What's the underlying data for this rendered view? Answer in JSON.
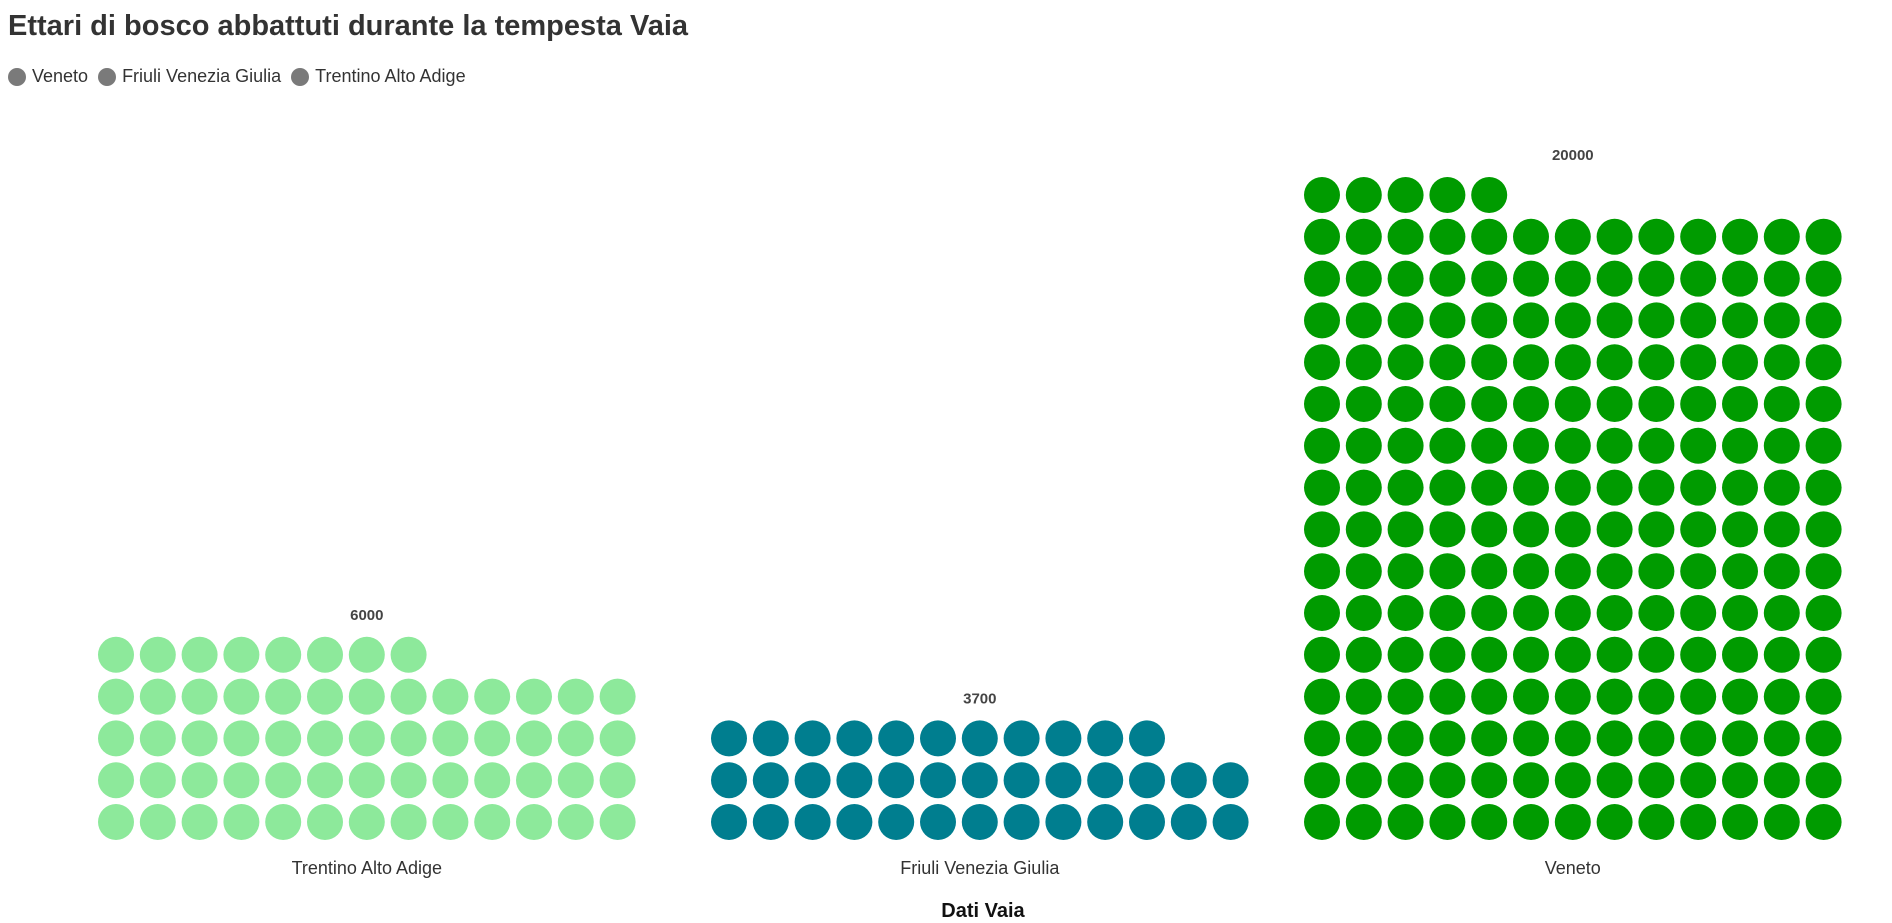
{
  "title": "Ettari di bosco abbattuti durante la tempesta Vaia",
  "legend": {
    "items": [
      {
        "label": "Veneto",
        "color": "#7a7a7a"
      },
      {
        "label": "Friuli Venezia Giulia",
        "color": "#7a7a7a"
      },
      {
        "label": "Trentino Alto Adige",
        "color": "#7a7a7a"
      }
    ]
  },
  "chart_data": {
    "type": "waffle",
    "title": "Ettari di bosco abbattuti durante la tempesta Vaia",
    "xlabel": "Dati Vaia",
    "ylabel": "",
    "categories": [
      "Trentino Alto Adige",
      "Friuli Venezia Giulia",
      "Veneto"
    ],
    "values": [
      6000,
      3700,
      20000
    ],
    "value_labels": [
      "6000",
      "3700",
      "20000"
    ],
    "dot_counts": [
      60,
      37,
      200
    ],
    "units_per_dot": 100,
    "dots_per_row": 13,
    "colors": [
      "#8de99b",
      "#007e8f",
      "#009b00"
    ],
    "grid": false
  }
}
